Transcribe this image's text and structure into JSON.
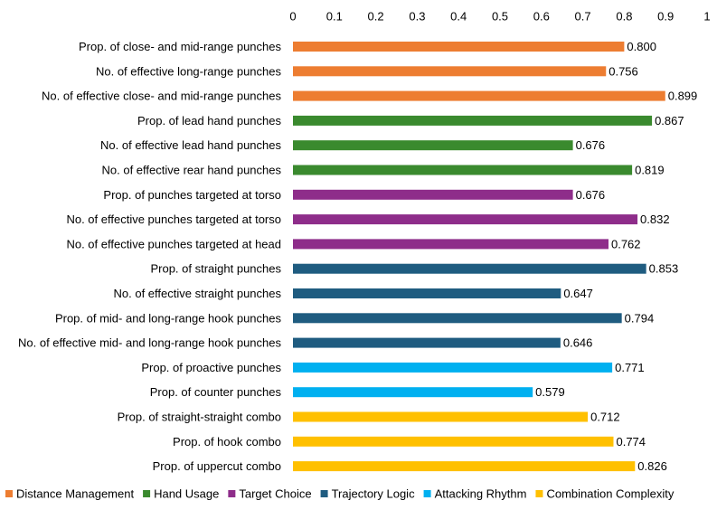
{
  "chart_data": {
    "type": "bar",
    "orientation": "horizontal",
    "title": "",
    "xlabel": "",
    "ylabel": "",
    "xlim": [
      0,
      1
    ],
    "x_ticks": [
      "0",
      "0.1",
      "0.2",
      "0.3",
      "0.4",
      "0.5",
      "0.6",
      "0.7",
      "0.8",
      "0.9",
      "1"
    ],
    "x_tick_values": [
      0,
      0.1,
      0.2,
      0.3,
      0.4,
      0.5,
      0.6,
      0.7,
      0.8,
      0.9,
      1
    ],
    "axis_position": "top",
    "grid": false,
    "legend_position": "bottom",
    "categories": [
      "Prop. of close- and mid-range punches",
      "No. of effective long-range punches",
      "No. of effective close- and mid-range punches",
      "Prop. of lead hand punches",
      "No. of effective lead hand punches",
      "No. of effective rear hand punches",
      "Prop. of punches targeted at torso",
      "No. of effective punches targeted at torso",
      "No. of effective punches targeted at head",
      "Prop. of straight punches",
      "No. of effective straight punches",
      "Prop. of mid- and long-range hook punches",
      "No. of effective mid- and long-range hook punches",
      "Prop. of proactive punches",
      "Prop. of counter punches",
      "Prop. of straight-straight combo",
      "Prop. of hook combo",
      "Prop. of uppercut combo"
    ],
    "values": [
      0.8,
      0.756,
      0.899,
      0.867,
      0.676,
      0.819,
      0.676,
      0.832,
      0.762,
      0.853,
      0.647,
      0.794,
      0.646,
      0.771,
      0.579,
      0.712,
      0.774,
      0.826
    ],
    "value_labels": [
      "0.800",
      "0.756",
      "0.899",
      "0.867",
      "0.676",
      "0.819",
      "0.676",
      "0.832",
      "0.762",
      "0.853",
      "0.647",
      "0.794",
      "0.646",
      "0.771",
      "0.579",
      "0.712",
      "0.774",
      "0.826"
    ],
    "groups": [
      0,
      0,
      0,
      1,
      1,
      1,
      2,
      2,
      2,
      3,
      3,
      3,
      3,
      4,
      4,
      5,
      5,
      5
    ],
    "legend": [
      {
        "name": "Distance Management",
        "color": "#ED7D31"
      },
      {
        "name": "Hand Usage",
        "color": "#3A8A2E"
      },
      {
        "name": "Target Choice",
        "color": "#8E2D8A"
      },
      {
        "name": "Trajectory Logic",
        "color": "#1F5C80"
      },
      {
        "name": "Attacking Rhythm",
        "color": "#00B0F0"
      },
      {
        "name": "Combination Complexity",
        "color": "#FFC000"
      }
    ]
  }
}
